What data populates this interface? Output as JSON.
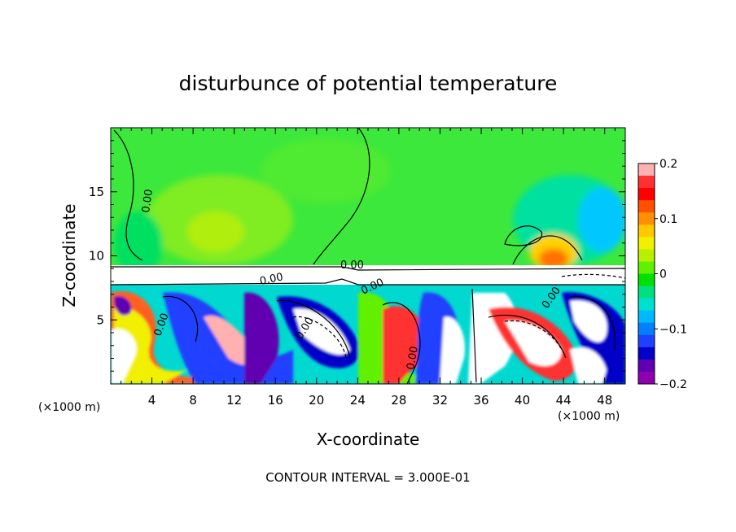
{
  "chart_data": {
    "type": "heatmap",
    "title": "disturbunce of potential temperature",
    "xlabel": "X-coordinate",
    "ylabel": "Z-coordinate",
    "x_unit": "(×1000 m)",
    "y_unit": "(×1000 m)",
    "xlim": [
      0,
      50
    ],
    "ylim": [
      0,
      20
    ],
    "x_ticks": [
      4,
      8,
      12,
      16,
      20,
      24,
      28,
      32,
      36,
      40,
      44,
      48
    ],
    "y_ticks": [
      5,
      10,
      15
    ],
    "colorbar": {
      "range": [
        -0.2,
        0.2
      ],
      "tick_labels": [
        "0.2",
        "0.1",
        "0",
        "−0.1",
        "−0.2"
      ],
      "tick_values": [
        0.2,
        0.1,
        0,
        -0.1,
        -0.2
      ],
      "colors": [
        "#ffb0b0",
        "#ff3030",
        "#ff0000",
        "#ff5000",
        "#ff9000",
        "#ffc800",
        "#f0f000",
        "#b8f000",
        "#60f000",
        "#00e000",
        "#00e080",
        "#00e0d0",
        "#00b8ff",
        "#0080ff",
        "#2040ff",
        "#0000c8",
        "#6000b0",
        "#9000b0"
      ]
    },
    "contour_labels": [
      "0.00",
      "0.00",
      "0.00",
      "0.00",
      "0.00",
      "0.00",
      "0.00",
      "0.00"
    ],
    "footer": "CONTOUR INTERVAL = 3.000E-01"
  }
}
